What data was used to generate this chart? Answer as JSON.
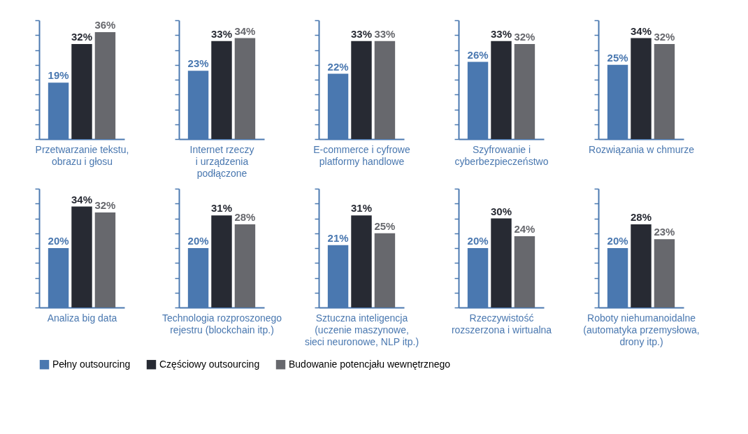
{
  "chart_data": [
    {
      "type": "bar",
      "xlabel": "Przetwarzanie tekstu,\nobrazu i głosu",
      "categories": [
        null
      ],
      "ylim": [
        0,
        40
      ],
      "tick_labels": false,
      "legend": "bottom",
      "series": [
        {
          "name": "Pełny outsourcing",
          "color": "#4a78b0",
          "values": [
            19
          ],
          "value_labels": [
            "19%"
          ]
        },
        {
          "name": "Częściowy outsourcing",
          "color": "#272a33",
          "values": [
            32
          ],
          "value_labels": [
            "32%"
          ]
        },
        {
          "name": "Budowanie potencjału wewnętrznego",
          "color": "#67686d",
          "values": [
            36
          ],
          "value_labels": [
            "36%"
          ]
        }
      ]
    },
    {
      "type": "bar",
      "xlabel": "Internet rzeczy\ni urządzenia\npodłączone",
      "categories": [
        null
      ],
      "ylim": [
        0,
        40
      ],
      "tick_labels": false,
      "legend": "bottom",
      "series": [
        {
          "name": "Pełny outsourcing",
          "color": "#4a78b0",
          "values": [
            23
          ],
          "value_labels": [
            "23%"
          ]
        },
        {
          "name": "Częściowy outsourcing",
          "color": "#272a33",
          "values": [
            33
          ],
          "value_labels": [
            "33%"
          ]
        },
        {
          "name": "Budowanie potencjału wewnętrznego",
          "color": "#67686d",
          "values": [
            34
          ],
          "value_labels": [
            "34%"
          ]
        }
      ]
    },
    {
      "type": "bar",
      "xlabel": "E-commerce i cyfrowe\nplatformy handlowe",
      "categories": [
        null
      ],
      "ylim": [
        0,
        40
      ],
      "tick_labels": false,
      "legend": "bottom",
      "series": [
        {
          "name": "Pełny outsourcing",
          "color": "#4a78b0",
          "values": [
            22
          ],
          "value_labels": [
            "22%"
          ]
        },
        {
          "name": "Częściowy outsourcing",
          "color": "#272a33",
          "values": [
            33
          ],
          "value_labels": [
            "33%"
          ]
        },
        {
          "name": "Budowanie potencjału wewnętrznego",
          "color": "#67686d",
          "values": [
            33
          ],
          "value_labels": [
            "33%"
          ]
        }
      ]
    },
    {
      "type": "bar",
      "xlabel": "Szyfrowanie i\ncyberbezpieczeństwo",
      "categories": [
        null
      ],
      "ylim": [
        0,
        40
      ],
      "tick_labels": false,
      "legend": "bottom",
      "series": [
        {
          "name": "Pełny outsourcing",
          "color": "#4a78b0",
          "values": [
            26
          ],
          "value_labels": [
            "26%"
          ]
        },
        {
          "name": "Częściowy outsourcing",
          "color": "#272a33",
          "values": [
            33
          ],
          "value_labels": [
            "33%"
          ]
        },
        {
          "name": "Budowanie potencjału wewnętrznego",
          "color": "#67686d",
          "values": [
            32
          ],
          "value_labels": [
            "32%"
          ]
        }
      ]
    },
    {
      "type": "bar",
      "xlabel": "Rozwiązania w chmurze",
      "categories": [
        null
      ],
      "ylim": [
        0,
        40
      ],
      "tick_labels": false,
      "legend": "bottom",
      "series": [
        {
          "name": "Pełny outsourcing",
          "color": "#4a78b0",
          "values": [
            25
          ],
          "value_labels": [
            "25%"
          ]
        },
        {
          "name": "Częściowy outsourcing",
          "color": "#272a33",
          "values": [
            34
          ],
          "value_labels": [
            "34%"
          ]
        },
        {
          "name": "Budowanie potencjału wewnętrznego",
          "color": "#67686d",
          "values": [
            32
          ],
          "value_labels": [
            "32%"
          ]
        }
      ]
    },
    {
      "type": "bar",
      "xlabel": "Analiza big data",
      "categories": [
        null
      ],
      "ylim": [
        0,
        40
      ],
      "tick_labels": false,
      "legend": "bottom",
      "series": [
        {
          "name": "Pełny outsourcing",
          "color": "#4a78b0",
          "values": [
            20
          ],
          "value_labels": [
            "20%"
          ]
        },
        {
          "name": "Częściowy outsourcing",
          "color": "#272a33",
          "values": [
            34
          ],
          "value_labels": [
            "34%"
          ]
        },
        {
          "name": "Budowanie potencjału wewnętrznego",
          "color": "#67686d",
          "values": [
            32
          ],
          "value_labels": [
            "32%"
          ]
        }
      ]
    },
    {
      "type": "bar",
      "xlabel": "Technologia rozproszonego\nrejestru (blockchain itp.)",
      "categories": [
        null
      ],
      "ylim": [
        0,
        40
      ],
      "tick_labels": false,
      "legend": "bottom",
      "series": [
        {
          "name": "Pełny outsourcing",
          "color": "#4a78b0",
          "values": [
            20
          ],
          "value_labels": [
            "20%"
          ]
        },
        {
          "name": "Częściowy outsourcing",
          "color": "#272a33",
          "values": [
            31
          ],
          "value_labels": [
            "31%"
          ]
        },
        {
          "name": "Budowanie potencjału wewnętrznego",
          "color": "#67686d",
          "values": [
            28
          ],
          "value_labels": [
            "28%"
          ]
        }
      ]
    },
    {
      "type": "bar",
      "xlabel": "Sztuczna inteligencja\n(uczenie maszynowe,\nsieci neuronowe, NLP itp.)",
      "categories": [
        null
      ],
      "ylim": [
        0,
        40
      ],
      "tick_labels": false,
      "legend": "bottom",
      "series": [
        {
          "name": "Pełny outsourcing",
          "color": "#4a78b0",
          "values": [
            21
          ],
          "value_labels": [
            "21%"
          ]
        },
        {
          "name": "Częściowy outsourcing",
          "color": "#272a33",
          "values": [
            31
          ],
          "value_labels": [
            "31%"
          ]
        },
        {
          "name": "Budowanie potencjału wewnętrznego",
          "color": "#67686d",
          "values": [
            25
          ],
          "value_labels": [
            "25%"
          ]
        }
      ]
    },
    {
      "type": "bar",
      "xlabel": "Rzeczywistość\nrozszerzona i wirtualna",
      "categories": [
        null
      ],
      "ylim": [
        0,
        40
      ],
      "tick_labels": false,
      "legend": "bottom",
      "series": [
        {
          "name": "Pełny outsourcing",
          "color": "#4a78b0",
          "values": [
            20
          ],
          "value_labels": [
            "20%"
          ]
        },
        {
          "name": "Częściowy outsourcing",
          "color": "#272a33",
          "values": [
            30
          ],
          "value_labels": [
            "30%"
          ]
        },
        {
          "name": "Budowanie potencjału wewnętrznego",
          "color": "#67686d",
          "values": [
            24
          ],
          "value_labels": [
            "24%"
          ]
        }
      ]
    },
    {
      "type": "bar",
      "xlabel": "Roboty niehumanoidalne\n(automatyka przemysłowa,\ndrony itp.)",
      "categories": [
        null
      ],
      "ylim": [
        0,
        40
      ],
      "tick_labels": false,
      "legend": "bottom",
      "series": [
        {
          "name": "Pełny outsourcing",
          "color": "#4a78b0",
          "values": [
            20
          ],
          "value_labels": [
            "20%"
          ]
        },
        {
          "name": "Częściowy outsourcing",
          "color": "#272a33",
          "values": [
            28
          ],
          "value_labels": [
            "28%"
          ]
        },
        {
          "name": "Budowanie potencjału wewnętrznego",
          "color": "#67686d",
          "values": [
            23
          ],
          "value_labels": [
            "23%"
          ]
        }
      ]
    }
  ]
}
